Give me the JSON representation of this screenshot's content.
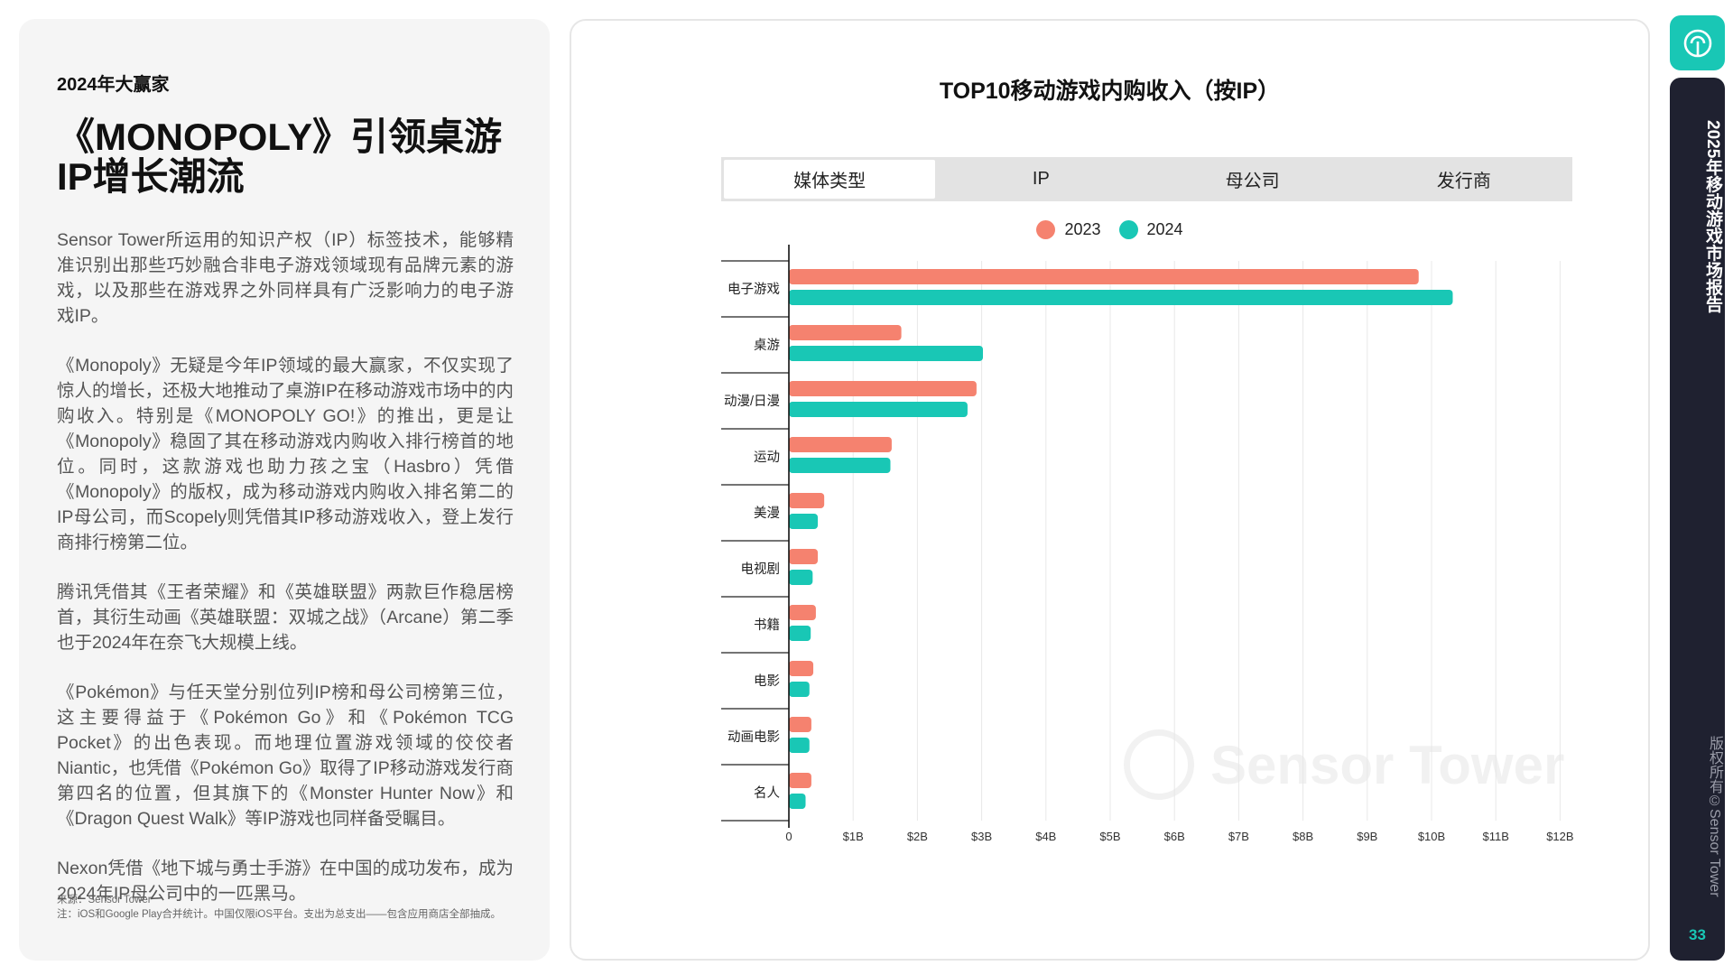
{
  "left": {
    "kicker": "2024年大赢家",
    "headline": "《MONOPOLY》引领桌游IP增长潮流",
    "paragraphs": [
      "Sensor Tower所运用的知识产权（IP）标签技术，能够精准识别出那些巧妙融合非电子游戏领域现有品牌元素的游戏，以及那些在游戏界之外同样具有广泛影响力的电子游戏IP。",
      "《Monopoly》无疑是今年IP领域的最大赢家，不仅实现了惊人的增长，还极大地推动了桌游IP在移动游戏市场中的内购收入。特别是《MONOPOLY GO!》的推出，更是让《Monopoly》稳固了其在移动游戏内购收入排行榜首的地位。同时，这款游戏也助力孩之宝（Hasbro）凭借《Monopoly》的版权，成为移动游戏内购收入排名第二的IP母公司，而Scopely则凭借其IP移动游戏收入，登上发行商排行榜第二位。",
      "腾讯凭借其《王者荣耀》和《英雄联盟》两款巨作稳居榜首，其衍生动画《英雄联盟：双城之战》（Arcane）第二季也于2024年在奈飞大规模上线。",
      "《Pokémon》与任天堂分别位列IP榜和母公司榜第三位，这主要得益于《Pokémon Go》和《Pokémon TCG Pocket》的出色表现。而地理位置游戏领域的佼佼者Niantic，也凭借《Pokémon Go》取得了IP移动游戏发行商第四名的位置，但其旗下的《Monster Hunter Now》和《Dragon Quest Walk》等IP游戏也同样备受瞩目。",
      "Nexon凭借《地下城与勇士手游》在中国的成功发布，成为2024年IP母公司中的一匹黑马。"
    ],
    "footnote_source": "来源：Sensor Tower",
    "footnote_note": "注：iOS和Google Play合并统计。中国仅限iOS平台。支出为总支出——包含应用商店全部抽成。"
  },
  "tabs": [
    {
      "label": "媒体类型",
      "active": true
    },
    {
      "label": "IP",
      "active": false
    },
    {
      "label": "母公司",
      "active": false
    },
    {
      "label": "发行商",
      "active": false
    }
  ],
  "watermark": "Sensor Tower",
  "rail": {
    "title": "2025年移动游戏市场报告",
    "copyright": "版权所有©Sensor Tower",
    "page": "33"
  },
  "colors": {
    "series_2023": "#f5826f",
    "series_2024": "#19c7b5",
    "accent": "#19c7b5",
    "rail_bg": "#1f2130"
  },
  "chart_data": {
    "type": "bar",
    "orientation": "horizontal",
    "title": "TOP10移动游戏内购收入（按IP）",
    "xlabel": "",
    "ylabel": "",
    "categories": [
      "电子游戏",
      "桌游",
      "动漫/日漫",
      "运动",
      "美漫",
      "电视剧",
      "书籍",
      "电影",
      "动画电影",
      "名人"
    ],
    "series": [
      {
        "name": "2023",
        "values": [
          9.8,
          1.75,
          2.92,
          1.6,
          0.55,
          0.45,
          0.42,
          0.38,
          0.35,
          0.35
        ]
      },
      {
        "name": "2024",
        "values": [
          10.33,
          3.02,
          2.78,
          1.58,
          0.45,
          0.37,
          0.34,
          0.32,
          0.32,
          0.26
        ]
      }
    ],
    "unit": "B USD",
    "xlim": [
      0,
      12
    ],
    "xticks": [
      0,
      1,
      2,
      3,
      4,
      5,
      6,
      7,
      8,
      9,
      10,
      11,
      12
    ],
    "xtick_labels": [
      "0",
      "$1B",
      "$2B",
      "$3B",
      "$4B",
      "$5B",
      "$6B",
      "$7B",
      "$8B",
      "$9B",
      "$10B",
      "$11B",
      "$12B"
    ],
    "grid": true,
    "legend": "top-center"
  }
}
